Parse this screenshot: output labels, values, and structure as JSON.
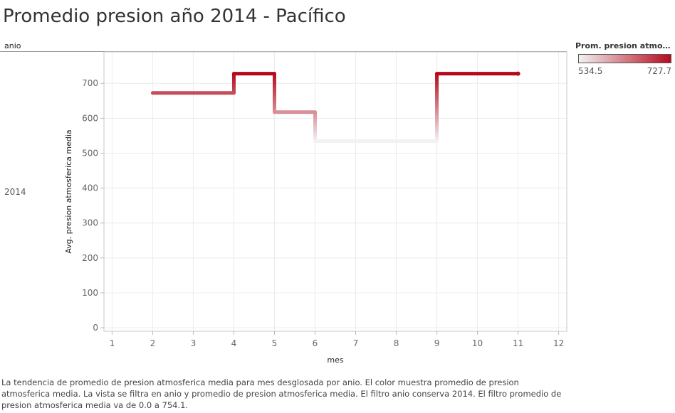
{
  "title": "Promedio presion año 2014 - Pacífico",
  "row_header": "anio",
  "row_value": "2014",
  "legend": {
    "title": "Prom. presion atmosfer..",
    "min_label": "534.5",
    "max_label": "727.7",
    "min": 534.5,
    "max": 727.7,
    "color_low": "#f2f2f2",
    "color_high": "#b60a1c"
  },
  "caption": "La tendencia de promedio de presion atmosferica media para mes desglosada por anio.  El color muestra promedio de presion atmosferica media. La vista se filtra en anio y promedio de presion atmosferica media. El filtro anio conserva 2014. El filtro promedio de presion atmosferica media va de 0.0 a 754.1.",
  "chart_data": {
    "type": "line",
    "line_shape": "step",
    "xlabel": "mes",
    "ylabel": "Avg. presion atmosferica media",
    "xlim": [
      0.8,
      12.2
    ],
    "ylim": [
      -10,
      790
    ],
    "xticks": [
      1,
      2,
      3,
      4,
      5,
      6,
      7,
      8,
      9,
      10,
      11,
      12
    ],
    "yticks": [
      0,
      100,
      200,
      300,
      400,
      500,
      600,
      700
    ],
    "grid": true,
    "x": [
      2,
      4,
      5,
      6,
      9,
      11
    ],
    "values": [
      672.5,
      727.7,
      617.5,
      534.5,
      727.7,
      727.7
    ]
  }
}
